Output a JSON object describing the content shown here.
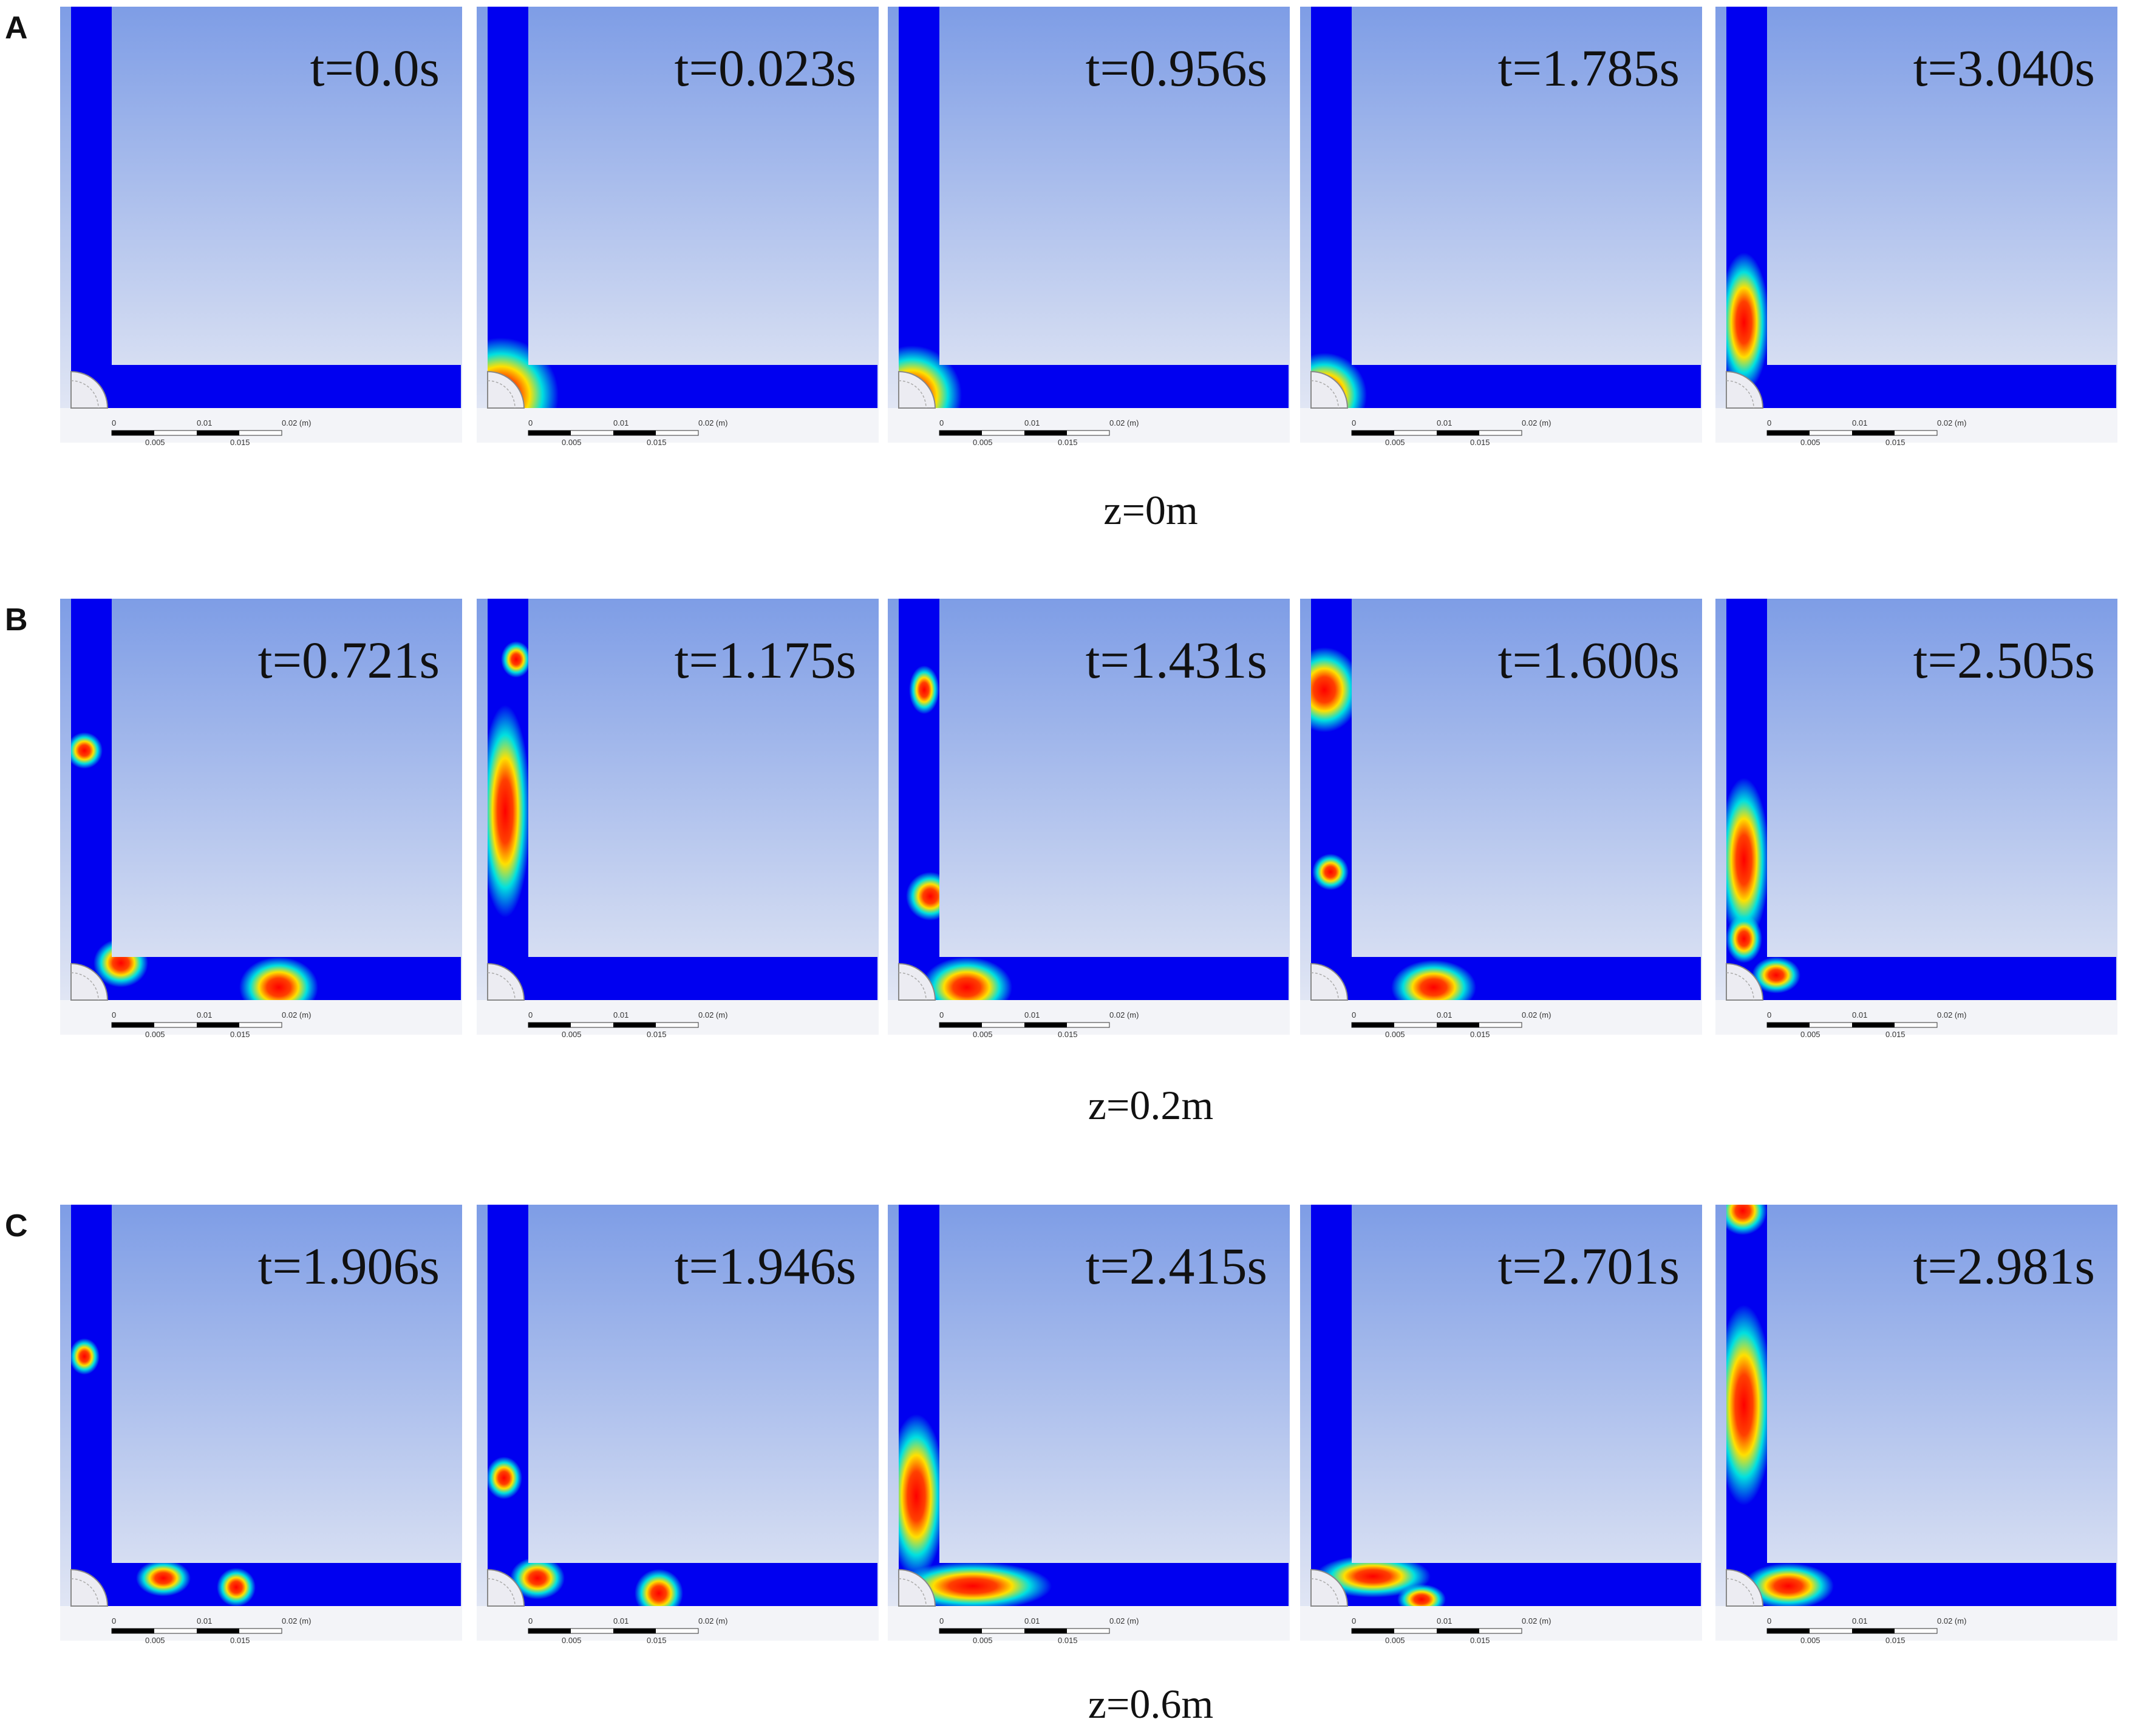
{
  "figure": {
    "rows": [
      {
        "label": "A",
        "caption": "z=0m",
        "times": [
          "t=0.0s",
          "t=0.023s",
          "t=0.956s",
          "t=1.785s",
          "t=3.040s"
        ]
      },
      {
        "label": "B",
        "caption": "z=0.2m",
        "times": [
          "t=0.721s",
          "t=1.175s",
          "t=1.431s",
          "t=1.600s",
          "t=2.505s"
        ]
      },
      {
        "label": "C",
        "caption": "z=0.6m",
        "times": [
          "t=1.906s",
          "t=1.946s",
          "t=2.415s",
          "t=2.701s",
          "t=2.981s"
        ]
      }
    ],
    "scale_bar": {
      "labels": [
        "0",
        "0.01",
        "0.02 (m)"
      ],
      "sublabels": [
        "0.005",
        "0.015"
      ]
    }
  }
}
